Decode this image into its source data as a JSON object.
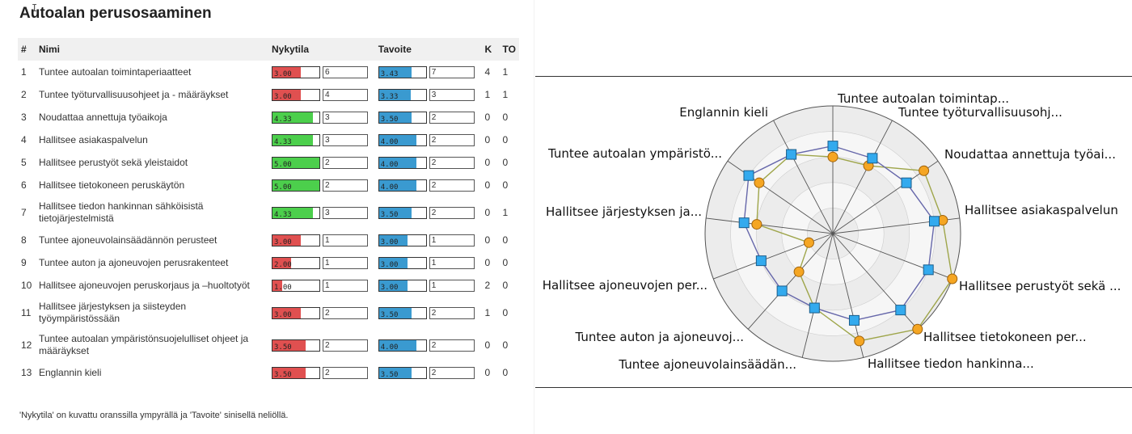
{
  "title": "Autoalan perusosaaminen",
  "cursor_glyph": "I",
  "table": {
    "headers": {
      "num": "#",
      "name": "Nimi",
      "current": "Nykytila",
      "target": "Tavoite",
      "k": "K",
      "to": "TO"
    },
    "rows": [
      {
        "num": "1",
        "name": "Tuntee autoalan toimintaperiaatteet",
        "current": "3.00",
        "current_input": "6",
        "target": "3.43",
        "target_input": "7",
        "k": "4",
        "to": "1"
      },
      {
        "num": "2",
        "name": "Tuntee työturvallisuusohjeet ja - määräykset",
        "current": "3.00",
        "current_input": "4",
        "target": "3.33",
        "target_input": "3",
        "k": "1",
        "to": "1"
      },
      {
        "num": "3",
        "name": "Noudattaa annettuja työaikoja",
        "current": "4.33",
        "current_input": "3",
        "target": "3.50",
        "target_input": "2",
        "k": "0",
        "to": "0"
      },
      {
        "num": "4",
        "name": "Hallitsee asiakaspalvelun",
        "current": "4.33",
        "current_input": "3",
        "target": "4.00",
        "target_input": "2",
        "k": "0",
        "to": "0"
      },
      {
        "num": "5",
        "name": "Hallitsee perustyöt sekä yleistaidot",
        "current": "5.00",
        "current_input": "2",
        "target": "4.00",
        "target_input": "2",
        "k": "0",
        "to": "0"
      },
      {
        "num": "6",
        "name": "Hallitsee tietokoneen peruskäytön",
        "current": "5.00",
        "current_input": "2",
        "target": "4.00",
        "target_input": "2",
        "k": "0",
        "to": "0"
      },
      {
        "num": "7",
        "name": "Hallitsee tiedon hankinnan sähköisistä tietojärjestelmistä",
        "current": "4.33",
        "current_input": "3",
        "target": "3.50",
        "target_input": "2",
        "k": "0",
        "to": "1"
      },
      {
        "num": "8",
        "name": "Tuntee ajoneuvolainsäädännön perusteet",
        "current": "3.00",
        "current_input": "1",
        "target": "3.00",
        "target_input": "1",
        "k": "0",
        "to": "0"
      },
      {
        "num": "9",
        "name": "Tuntee auton ja ajoneuvojen perusrakenteet",
        "current": "2.00",
        "current_input": "1",
        "target": "3.00",
        "target_input": "1",
        "k": "0",
        "to": "0"
      },
      {
        "num": "10",
        "name": "Hallitsee ajoneuvojen peruskorjaus ja –huoltotyöt",
        "current": "1.00",
        "current_input": "1",
        "target": "3.00",
        "target_input": "1",
        "k": "2",
        "to": "0"
      },
      {
        "num": "11",
        "name": "Hallitsee järjestyksen ja siisteyden työympäristössään",
        "current": "3.00",
        "current_input": "2",
        "target": "3.50",
        "target_input": "2",
        "k": "1",
        "to": "0"
      },
      {
        "num": "12",
        "name": "Tuntee autoalan ympäristönsuojelulliset ohjeet ja määräykset",
        "current": "3.50",
        "current_input": "2",
        "target": "4.00",
        "target_input": "2",
        "k": "0",
        "to": "0"
      },
      {
        "num": "13",
        "name": "Englannin kieli",
        "current": "3.50",
        "current_input": "2",
        "target": "3.50",
        "target_input": "2",
        "k": "0",
        "to": "0"
      }
    ]
  },
  "note": "'Nykytila' on kuvattu oranssilla ympyrällä ja 'Tavoite' sinisellä neliöllä.",
  "colors": {
    "low": "#e05050",
    "high": "#4ccf4c",
    "target": "#3a9ad0",
    "current_marker": "#f5a623",
    "target_marker": "#33aaee"
  },
  "chart_data": {
    "type": "radar",
    "scale_max": 5,
    "axes": [
      "Tuntee autoalan toimintap...",
      "Tuntee työturvallisuusohj...",
      "Noudattaa annettuja työai...",
      "Hallitsee asiakaspalvelun",
      "Hallitsee perustyöt sekä ...",
      "Hallitsee tietokoneen per...",
      "Hallitsee tiedon hankinna...",
      "Tuntee ajoneuvolainsäädän...",
      "Tuntee auton ja ajoneuvoj...",
      "Hallitsee ajoneuvojen per...",
      "Hallitsee järjestyksen ja...",
      "Tuntee autoalan ympäristö...",
      "Englannin kieli"
    ],
    "series": [
      {
        "name": "Nykytila",
        "marker": "circle",
        "values": [
          3.0,
          3.0,
          4.33,
          4.33,
          5.0,
          5.0,
          4.33,
          3.0,
          2.0,
          1.0,
          3.0,
          3.5,
          3.5
        ]
      },
      {
        "name": "Tavoite",
        "marker": "square",
        "values": [
          3.43,
          3.33,
          3.5,
          4.0,
          4.0,
          4.0,
          3.5,
          3.0,
          3.0,
          3.0,
          3.5,
          4.0,
          3.5
        ]
      }
    ]
  }
}
